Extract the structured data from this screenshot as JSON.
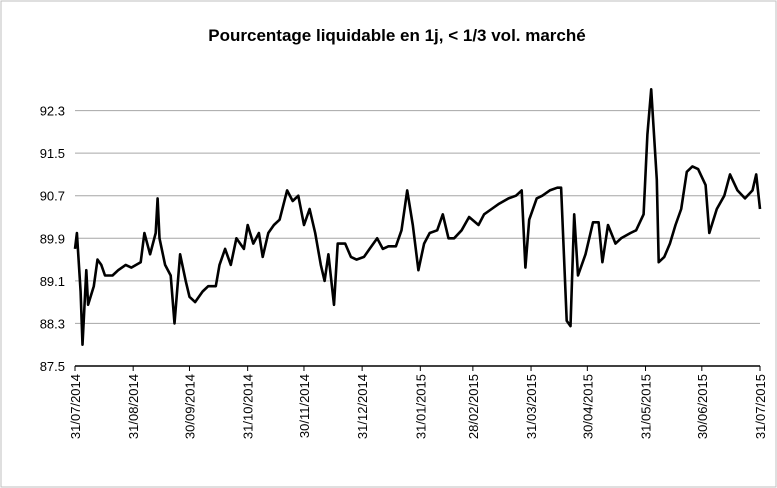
{
  "chart_data": {
    "type": "line",
    "title": "Pourcentage liquidable en 1j, < 1/3 vol. marché",
    "x": [
      "31/07/2014",
      "01/08/2014",
      "03/08/2014",
      "04/08/2014",
      "06/08/2014",
      "07/08/2014",
      "10/08/2014",
      "12/08/2014",
      "14/08/2014",
      "16/08/2014",
      "20/08/2014",
      "23/08/2014",
      "27/08/2014",
      "30/08/2014",
      "04/09/2014",
      "06/09/2014",
      "09/09/2014",
      "12/09/2014",
      "13/09/2014",
      "14/09/2014",
      "17/09/2014",
      "20/09/2014",
      "22/09/2014",
      "25/09/2014",
      "28/09/2014",
      "30/09/2014",
      "03/10/2014",
      "07/10/2014",
      "10/10/2014",
      "14/10/2014",
      "16/10/2014",
      "19/10/2014",
      "22/10/2014",
      "25/10/2014",
      "29/10/2014",
      "31/10/2014",
      "03/11/2014",
      "06/11/2014",
      "08/11/2014",
      "11/11/2014",
      "14/11/2014",
      "17/11/2014",
      "21/11/2014",
      "24/11/2014",
      "27/11/2014",
      "30/11/2014",
      "03/12/2014",
      "06/12/2014",
      "09/12/2014",
      "11/12/2014",
      "13/12/2014",
      "16/12/2014",
      "18/12/2014",
      "22/12/2014",
      "25/12/2014",
      "28/12/2014",
      "01/01/2015",
      "04/01/2015",
      "08/01/2015",
      "11/01/2015",
      "14/01/2015",
      "18/01/2015",
      "21/01/2015",
      "24/01/2015",
      "27/01/2015",
      "30/01/2015",
      "02/02/2015",
      "05/02/2015",
      "09/02/2015",
      "12/02/2015",
      "15/02/2015",
      "18/02/2015",
      "22/02/2015",
      "26/02/2015",
      "03/03/2015",
      "06/03/2015",
      "10/03/2015",
      "14/03/2015",
      "19/03/2015",
      "23/03/2015",
      "26/03/2015",
      "28/03/2015",
      "30/03/2015",
      "03/04/2015",
      "06/04/2015",
      "10/04/2015",
      "14/04/2015",
      "16/04/2015",
      "19/04/2015",
      "21/04/2015",
      "23/04/2015",
      "25/04/2015",
      "29/04/2015",
      "03/05/2015",
      "06/05/2015",
      "08/05/2015",
      "11/05/2015",
      "15/05/2015",
      "18/05/2015",
      "23/05/2015",
      "26/05/2015",
      "30/05/2015",
      "01/06/2015",
      "03/06/2015",
      "06/06/2015",
      "07/06/2015",
      "10/06/2015",
      "13/06/2015",
      "16/06/2015",
      "19/06/2015",
      "22/06/2015",
      "25/06/2015",
      "28/06/2015",
      "02/07/2015",
      "04/07/2015",
      "08/07/2015",
      "12/07/2015",
      "15/07/2015",
      "19/07/2015",
      "23/07/2015",
      "27/07/2015",
      "29/07/2015",
      "31/07/2015"
    ],
    "series": [
      {
        "name": "Pourcentage liquidable",
        "color": "#000000",
        "values": [
          89.7,
          90.0,
          88.9,
          87.9,
          89.3,
          88.65,
          89.0,
          89.5,
          89.4,
          89.2,
          89.2,
          89.3,
          89.4,
          89.35,
          89.45,
          90.0,
          89.6,
          90.0,
          90.65,
          89.9,
          89.4,
          89.2,
          88.3,
          89.6,
          89.1,
          88.8,
          88.7,
          88.9,
          89.0,
          89.0,
          89.4,
          89.7,
          89.4,
          89.9,
          89.7,
          90.15,
          89.8,
          90.0,
          89.55,
          90.0,
          90.15,
          90.25,
          90.8,
          90.6,
          90.7,
          90.15,
          90.45,
          90.0,
          89.4,
          89.1,
          89.6,
          88.65,
          89.8,
          89.8,
          89.55,
          89.5,
          89.55,
          89.7,
          89.9,
          89.7,
          89.75,
          89.75,
          90.05,
          90.8,
          90.15,
          89.3,
          89.8,
          90.0,
          90.05,
          90.35,
          89.9,
          89.9,
          90.05,
          90.3,
          90.15,
          90.35,
          90.45,
          90.55,
          90.65,
          90.7,
          90.8,
          89.35,
          90.25,
          90.65,
          90.7,
          90.8,
          90.85,
          90.85,
          88.35,
          88.25,
          90.35,
          89.2,
          89.6,
          90.2,
          90.2,
          89.45,
          90.15,
          89.8,
          89.9,
          90.0,
          90.05,
          90.35,
          91.85,
          92.7,
          91.0,
          89.45,
          89.55,
          89.8,
          90.15,
          90.45,
          91.15,
          91.25,
          91.2,
          90.9,
          90.0,
          90.45,
          90.7,
          91.1,
          90.8,
          90.65,
          90.8,
          91.1,
          90.45
        ]
      }
    ],
    "xlim": [
      "31/07/2014",
      "31/07/2015"
    ],
    "xticks": [
      "31/07/2014",
      "31/08/2014",
      "30/09/2014",
      "31/10/2014",
      "30/11/2014",
      "31/12/2014",
      "31/01/2015",
      "28/02/2015",
      "31/03/2015",
      "30/04/2015",
      "31/05/2015",
      "30/06/2015",
      "31/07/2015"
    ],
    "ylim": [
      87.5,
      93.1
    ],
    "yticks": [
      87.5,
      88.3,
      89.1,
      89.9,
      90.7,
      91.5,
      92.3
    ],
    "grid": true
  }
}
